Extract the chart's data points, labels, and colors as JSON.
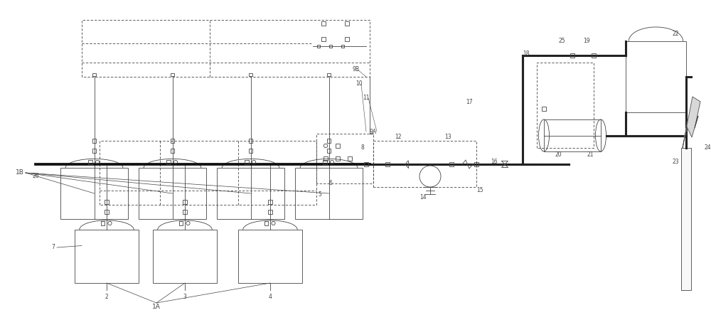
{
  "bg_color": "#ffffff",
  "line_color": "#444444",
  "fig_w": 10.0,
  "fig_h": 4.43,
  "dpi": 100,
  "xlim": [
    0,
    100
  ],
  "ylim": [
    0,
    44.3
  ]
}
